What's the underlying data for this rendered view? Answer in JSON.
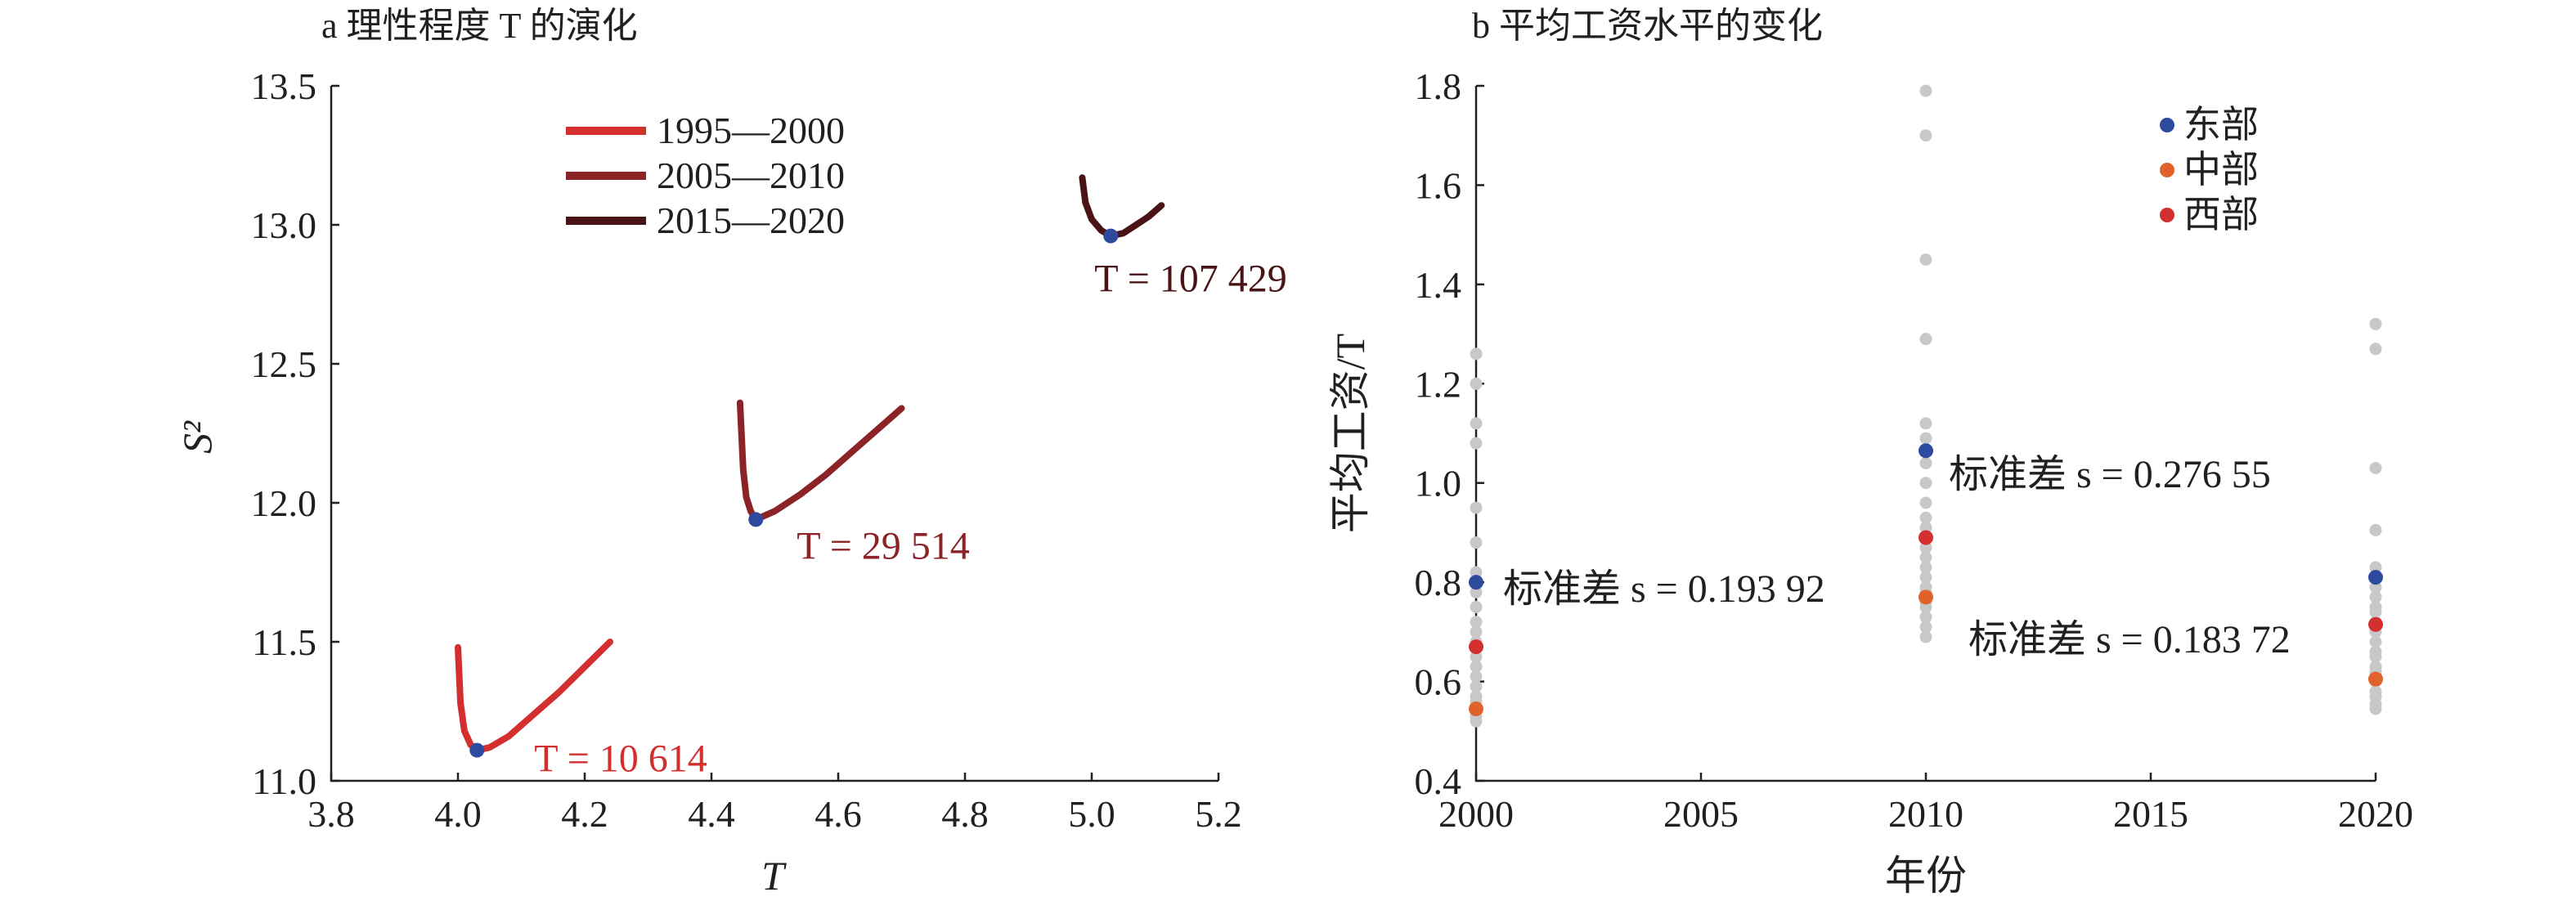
{
  "chart_data": [
    {
      "type": "line",
      "title": "a 理性程度 T 的演化",
      "xlabel": "T",
      "ylabel": "S²",
      "xlim": [
        3.8,
        5.2
      ],
      "ylim": [
        11.0,
        13.5
      ],
      "x_ticks": [
        "3.8",
        "4.0",
        "4.2",
        "4.4",
        "4.6",
        "4.8",
        "5.0",
        "5.2"
      ],
      "y_ticks": [
        "11.0",
        "11.5",
        "12.0",
        "12.5",
        "13.0",
        "13.5"
      ],
      "legend_position": "top-center",
      "series": [
        {
          "name": "1995—2000",
          "color": "#d42f2f",
          "points": [
            [
              4.0,
              11.48
            ],
            [
              4.004,
              11.28
            ],
            [
              4.01,
              11.18
            ],
            [
              4.02,
              11.13
            ],
            [
              4.03,
              11.11
            ],
            [
              4.05,
              11.12
            ],
            [
              4.08,
              11.16
            ],
            [
              4.12,
              11.24
            ],
            [
              4.16,
              11.32
            ],
            [
              4.2,
              11.41
            ],
            [
              4.24,
              11.5
            ]
          ],
          "minimum": {
            "x": 4.03,
            "y": 11.11,
            "label": "T = 10 614"
          }
        },
        {
          "name": "2005—2010",
          "color": "#8b2327",
          "points": [
            [
              4.445,
              12.36
            ],
            [
              4.45,
              12.12
            ],
            [
              4.455,
              12.02
            ],
            [
              4.462,
              11.97
            ],
            [
              4.47,
              11.94
            ],
            [
              4.5,
              11.97
            ],
            [
              4.54,
              12.03
            ],
            [
              4.58,
              12.1
            ],
            [
              4.62,
              12.18
            ],
            [
              4.66,
              12.26
            ],
            [
              4.7,
              12.34
            ]
          ],
          "minimum": {
            "x": 4.47,
            "y": 11.94,
            "label": "T = 29 514"
          }
        },
        {
          "name": "2015—2020",
          "color": "#4a1416",
          "points": [
            [
              4.985,
              13.17
            ],
            [
              4.99,
              13.08
            ],
            [
              5.0,
              13.02
            ],
            [
              5.015,
              12.98
            ],
            [
              5.03,
              12.96
            ],
            [
              5.05,
              12.97
            ],
            [
              5.07,
              13.0
            ],
            [
              5.09,
              13.03
            ],
            [
              5.11,
              13.07
            ]
          ],
          "minimum": {
            "x": 5.03,
            "y": 12.96,
            "label": "T = 107 429"
          }
        }
      ]
    },
    {
      "type": "scatter",
      "title": "b 平均工资水平的变化",
      "xlabel": "年份",
      "ylabel": "平均工资/T",
      "xlim": [
        2000,
        2020
      ],
      "ylim": [
        0.4,
        1.8
      ],
      "x_ticks": [
        "2000",
        "2005",
        "2010",
        "2015",
        "2020"
      ],
      "y_ticks": [
        "0.4",
        "0.6",
        "0.8",
        "1.0",
        "1.2",
        "1.4",
        "1.6",
        "1.8"
      ],
      "legend_position": "top-right",
      "series": [
        {
          "name": "东部",
          "color": "#2e4a9e",
          "points": [
            [
              2000,
              0.8
            ],
            [
              2010,
              1.065
            ],
            [
              2020,
              0.81
            ]
          ]
        },
        {
          "name": "中部",
          "color": "#e0622a",
          "points": [
            [
              2000,
              0.545
            ],
            [
              2010,
              0.77
            ],
            [
              2020,
              0.605
            ]
          ]
        },
        {
          "name": "西部",
          "color": "#d42f2f",
          "points": [
            [
              2000,
              0.67
            ],
            [
              2010,
              0.89
            ],
            [
              2020,
              0.715
            ]
          ]
        },
        {
          "name": "",
          "color": "#c8c8c8",
          "points": [
            [
              2000,
              1.26
            ],
            [
              2000,
              1.2
            ],
            [
              2000,
              1.12
            ],
            [
              2000,
              1.08
            ],
            [
              2000,
              0.95
            ],
            [
              2000,
              0.88
            ],
            [
              2000,
              0.82
            ],
            [
              2000,
              0.78
            ],
            [
              2000,
              0.75
            ],
            [
              2000,
              0.72
            ],
            [
              2000,
              0.7
            ],
            [
              2000,
              0.68
            ],
            [
              2000,
              0.65
            ],
            [
              2000,
              0.63
            ],
            [
              2000,
              0.61
            ],
            [
              2000,
              0.59
            ],
            [
              2000,
              0.57
            ],
            [
              2000,
              0.56
            ],
            [
              2000,
              0.53
            ],
            [
              2000,
              0.52
            ],
            [
              2010,
              1.79
            ],
            [
              2010,
              1.7
            ],
            [
              2010,
              1.45
            ],
            [
              2010,
              1.29
            ],
            [
              2010,
              1.12
            ],
            [
              2010,
              1.09
            ],
            [
              2010,
              1.04
            ],
            [
              2010,
              1.0
            ],
            [
              2010,
              0.96
            ],
            [
              2010,
              0.93
            ],
            [
              2010,
              0.91
            ],
            [
              2010,
              0.87
            ],
            [
              2010,
              0.85
            ],
            [
              2010,
              0.83
            ],
            [
              2010,
              0.81
            ],
            [
              2010,
              0.79
            ],
            [
              2010,
              0.78
            ],
            [
              2010,
              0.76
            ],
            [
              2010,
              0.75
            ],
            [
              2010,
              0.73
            ],
            [
              2010,
              0.71
            ],
            [
              2010,
              0.69
            ],
            [
              2020,
              1.32
            ],
            [
              2020,
              1.27
            ],
            [
              2020,
              1.03
            ],
            [
              2020,
              0.905
            ],
            [
              2020,
              0.83
            ],
            [
              2020,
              0.79
            ],
            [
              2020,
              0.77
            ],
            [
              2020,
              0.75
            ],
            [
              2020,
              0.74
            ],
            [
              2020,
              0.72
            ],
            [
              2020,
              0.7
            ],
            [
              2020,
              0.68
            ],
            [
              2020,
              0.66
            ],
            [
              2020,
              0.65
            ],
            [
              2020,
              0.63
            ],
            [
              2020,
              0.62
            ],
            [
              2020,
              0.6
            ],
            [
              2020,
              0.58
            ],
            [
              2020,
              0.57
            ],
            [
              2020,
              0.555
            ],
            [
              2020,
              0.545
            ]
          ]
        }
      ],
      "annotations": [
        {
          "text": "标准差 s = 0.193 92",
          "x": 2000,
          "y": 0.78
        },
        {
          "text": "标准差 s = 0.276 55",
          "x": 2010,
          "y": 1.0
        },
        {
          "text": "标准差 s = 0.183 72",
          "x": 2020,
          "y": 0.63
        }
      ]
    }
  ]
}
